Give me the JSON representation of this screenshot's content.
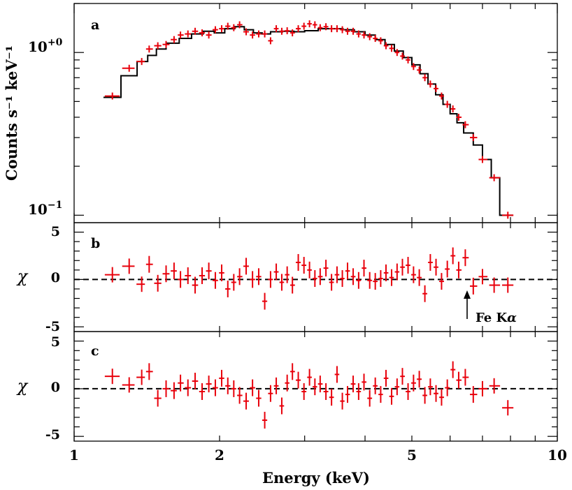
{
  "chart_data": [
    {
      "panel": "a",
      "panel_label": "a",
      "type": "scatter",
      "yscale": "log",
      "ylabel": "Counts s⁻¹ keV⁻¹",
      "ylim": [
        0.09,
        2.0
      ],
      "xlim": [
        1,
        10
      ],
      "y_ticks": [
        {
          "value": 1.0,
          "label_base": "10",
          "label_exp": "+0"
        },
        {
          "value": 0.1,
          "label_base": "10",
          "label_exp": "−1"
        }
      ],
      "series": [
        {
          "kind": "data_points_with_errors",
          "color": "#e8000b",
          "x": [
            1.2,
            1.3,
            1.38,
            1.43,
            1.49,
            1.55,
            1.61,
            1.66,
            1.72,
            1.78,
            1.84,
            1.9,
            1.96,
            2.02,
            2.08,
            2.14,
            2.2,
            2.27,
            2.34,
            2.41,
            2.48,
            2.55,
            2.62,
            2.69,
            2.76,
            2.83,
            2.91,
            2.99,
            3.07,
            3.15,
            3.23,
            3.32,
            3.41,
            3.5,
            3.59,
            3.68,
            3.78,
            3.88,
            3.98,
            4.09,
            4.2,
            4.31,
            4.42,
            4.54,
            4.66,
            4.78,
            4.91,
            5.04,
            5.18,
            5.32,
            5.46,
            5.61,
            5.76,
            5.92,
            6.08,
            6.25,
            6.45,
            6.7,
            7.0,
            7.4,
            7.9
          ],
          "y": [
            0.54,
            0.8,
            0.88,
            1.05,
            1.1,
            1.12,
            1.2,
            1.28,
            1.3,
            1.35,
            1.32,
            1.28,
            1.38,
            1.4,
            1.45,
            1.42,
            1.48,
            1.34,
            1.28,
            1.3,
            1.3,
            1.18,
            1.4,
            1.35,
            1.36,
            1.32,
            1.4,
            1.45,
            1.5,
            1.48,
            1.42,
            1.44,
            1.4,
            1.4,
            1.38,
            1.35,
            1.35,
            1.3,
            1.28,
            1.25,
            1.22,
            1.18,
            1.1,
            1.06,
            1.0,
            0.95,
            0.9,
            0.82,
            0.78,
            0.7,
            0.64,
            0.6,
            0.54,
            0.48,
            0.45,
            0.4,
            0.36,
            0.3,
            0.22,
            0.17,
            0.1
          ]
        },
        {
          "kind": "model_step",
          "color": "#000000",
          "edges": [
            1.15,
            1.25,
            1.35,
            1.42,
            1.48,
            1.55,
            1.65,
            1.75,
            1.85,
            1.95,
            2.05,
            2.15,
            2.25,
            2.35,
            2.45,
            2.55,
            2.7,
            2.85,
            3.0,
            3.2,
            3.4,
            3.6,
            3.8,
            4.0,
            4.2,
            4.4,
            4.6,
            4.8,
            5.0,
            5.2,
            5.4,
            5.6,
            5.8,
            6.0,
            6.2,
            6.4,
            6.7,
            7.0,
            7.3,
            7.6,
            8.1
          ],
          "y": [
            0.53,
            0.72,
            0.88,
            0.96,
            1.05,
            1.14,
            1.22,
            1.3,
            1.35,
            1.32,
            1.4,
            1.44,
            1.38,
            1.32,
            1.3,
            1.34,
            1.35,
            1.34,
            1.36,
            1.4,
            1.4,
            1.38,
            1.34,
            1.28,
            1.2,
            1.12,
            1.02,
            0.93,
            0.84,
            0.74,
            0.64,
            0.55,
            0.48,
            0.42,
            0.37,
            0.32,
            0.27,
            0.22,
            0.17,
            0.1
          ]
        }
      ]
    },
    {
      "panel": "b",
      "panel_label": "b",
      "type": "scatter",
      "ylabel": "χ",
      "ylim": [
        -5.5,
        6.0
      ],
      "xlim": [
        1,
        10
      ],
      "y_ticks": [
        {
          "value": 5,
          "label": "5"
        },
        {
          "value": 0,
          "label": "0"
        },
        {
          "value": -5,
          "label": "-5"
        }
      ],
      "reference_line": 0,
      "annotation": {
        "text": "Fe K",
        "greek": "α",
        "x": 6.4
      },
      "series": [
        {
          "kind": "residuals",
          "color": "#e8000b",
          "x": [
            1.2,
            1.3,
            1.38,
            1.43,
            1.49,
            1.55,
            1.61,
            1.66,
            1.72,
            1.78,
            1.84,
            1.9,
            1.96,
            2.02,
            2.08,
            2.14,
            2.2,
            2.27,
            2.34,
            2.41,
            2.48,
            2.55,
            2.62,
            2.69,
            2.76,
            2.83,
            2.91,
            2.99,
            3.07,
            3.15,
            3.23,
            3.32,
            3.41,
            3.5,
            3.59,
            3.68,
            3.78,
            3.88,
            3.98,
            4.09,
            4.2,
            4.31,
            4.42,
            4.54,
            4.66,
            4.78,
            4.91,
            5.04,
            5.18,
            5.32,
            5.46,
            5.61,
            5.76,
            5.92,
            6.08,
            6.25,
            6.45,
            6.7,
            7.0,
            7.4,
            7.9
          ],
          "y": [
            0.5,
            1.4,
            -0.5,
            1.6,
            -0.4,
            0.6,
            0.9,
            0.0,
            0.4,
            -0.6,
            0.4,
            0.9,
            -0.1,
            0.7,
            -1.0,
            -0.3,
            0.3,
            1.4,
            0.0,
            0.3,
            -2.3,
            0.0,
            0.8,
            -0.3,
            0.5,
            -0.6,
            1.8,
            1.5,
            1.0,
            0.1,
            0.3,
            1.2,
            -0.3,
            0.5,
            0.1,
            0.9,
            0.3,
            -0.1,
            1.2,
            -0.1,
            -0.2,
            0.1,
            0.7,
            0.2,
            0.8,
            1.3,
            1.5,
            0.5,
            0.2,
            -1.5,
            1.8,
            1.3,
            -0.2,
            1.1,
            2.5,
            1.0,
            2.3,
            -0.7,
            0.3,
            -0.6,
            -0.6
          ]
        }
      ]
    },
    {
      "panel": "c",
      "panel_label": "c",
      "type": "scatter",
      "ylabel": "χ",
      "ylim": [
        -5.5,
        6.0
      ],
      "xlim": [
        1,
        10
      ],
      "xlabel": "Energy (keV)",
      "xscale": "log",
      "x_ticks": [
        {
          "value": 1,
          "label": "1"
        },
        {
          "value": 2,
          "label": "2"
        },
        {
          "value": 5,
          "label": "5"
        },
        {
          "value": 10,
          "label": "10"
        }
      ],
      "y_ticks": [
        {
          "value": 5,
          "label": "5"
        },
        {
          "value": 0,
          "label": "0"
        },
        {
          "value": -5,
          "label": "-5"
        }
      ],
      "reference_line": 0,
      "series": [
        {
          "kind": "residuals",
          "color": "#e8000b",
          "x": [
            1.2,
            1.3,
            1.38,
            1.43,
            1.49,
            1.55,
            1.61,
            1.66,
            1.72,
            1.78,
            1.84,
            1.9,
            1.96,
            2.02,
            2.08,
            2.14,
            2.2,
            2.27,
            2.34,
            2.41,
            2.48,
            2.55,
            2.62,
            2.69,
            2.76,
            2.83,
            2.91,
            2.99,
            3.07,
            3.15,
            3.23,
            3.32,
            3.41,
            3.5,
            3.59,
            3.68,
            3.78,
            3.88,
            3.98,
            4.09,
            4.2,
            4.31,
            4.42,
            4.54,
            4.66,
            4.78,
            4.91,
            5.04,
            5.18,
            5.32,
            5.46,
            5.61,
            5.76,
            5.92,
            6.08,
            6.25,
            6.45,
            6.7,
            7.0,
            7.4,
            7.9
          ],
          "y": [
            1.3,
            0.4,
            1.2,
            1.8,
            -1.0,
            0.0,
            -0.2,
            0.6,
            0.1,
            0.8,
            -0.3,
            0.5,
            0.1,
            1.1,
            0.3,
            0.0,
            -0.7,
            -1.3,
            0.1,
            -1.0,
            -3.3,
            -0.5,
            0.3,
            -1.8,
            0.6,
            1.8,
            0.9,
            -0.3,
            1.2,
            0.2,
            0.5,
            -0.3,
            -0.9,
            1.5,
            -1.3,
            -0.6,
            0.5,
            -0.3,
            0.7,
            -1.0,
            0.3,
            -0.6,
            1.1,
            -0.8,
            0.2,
            1.3,
            -0.3,
            0.6,
            1.0,
            -0.7,
            0.2,
            -0.5,
            -0.9,
            0.1,
            2.0,
            0.9,
            1.2,
            -0.6,
            0.0,
            0.3,
            -2.0
          ]
        }
      ]
    }
  ]
}
